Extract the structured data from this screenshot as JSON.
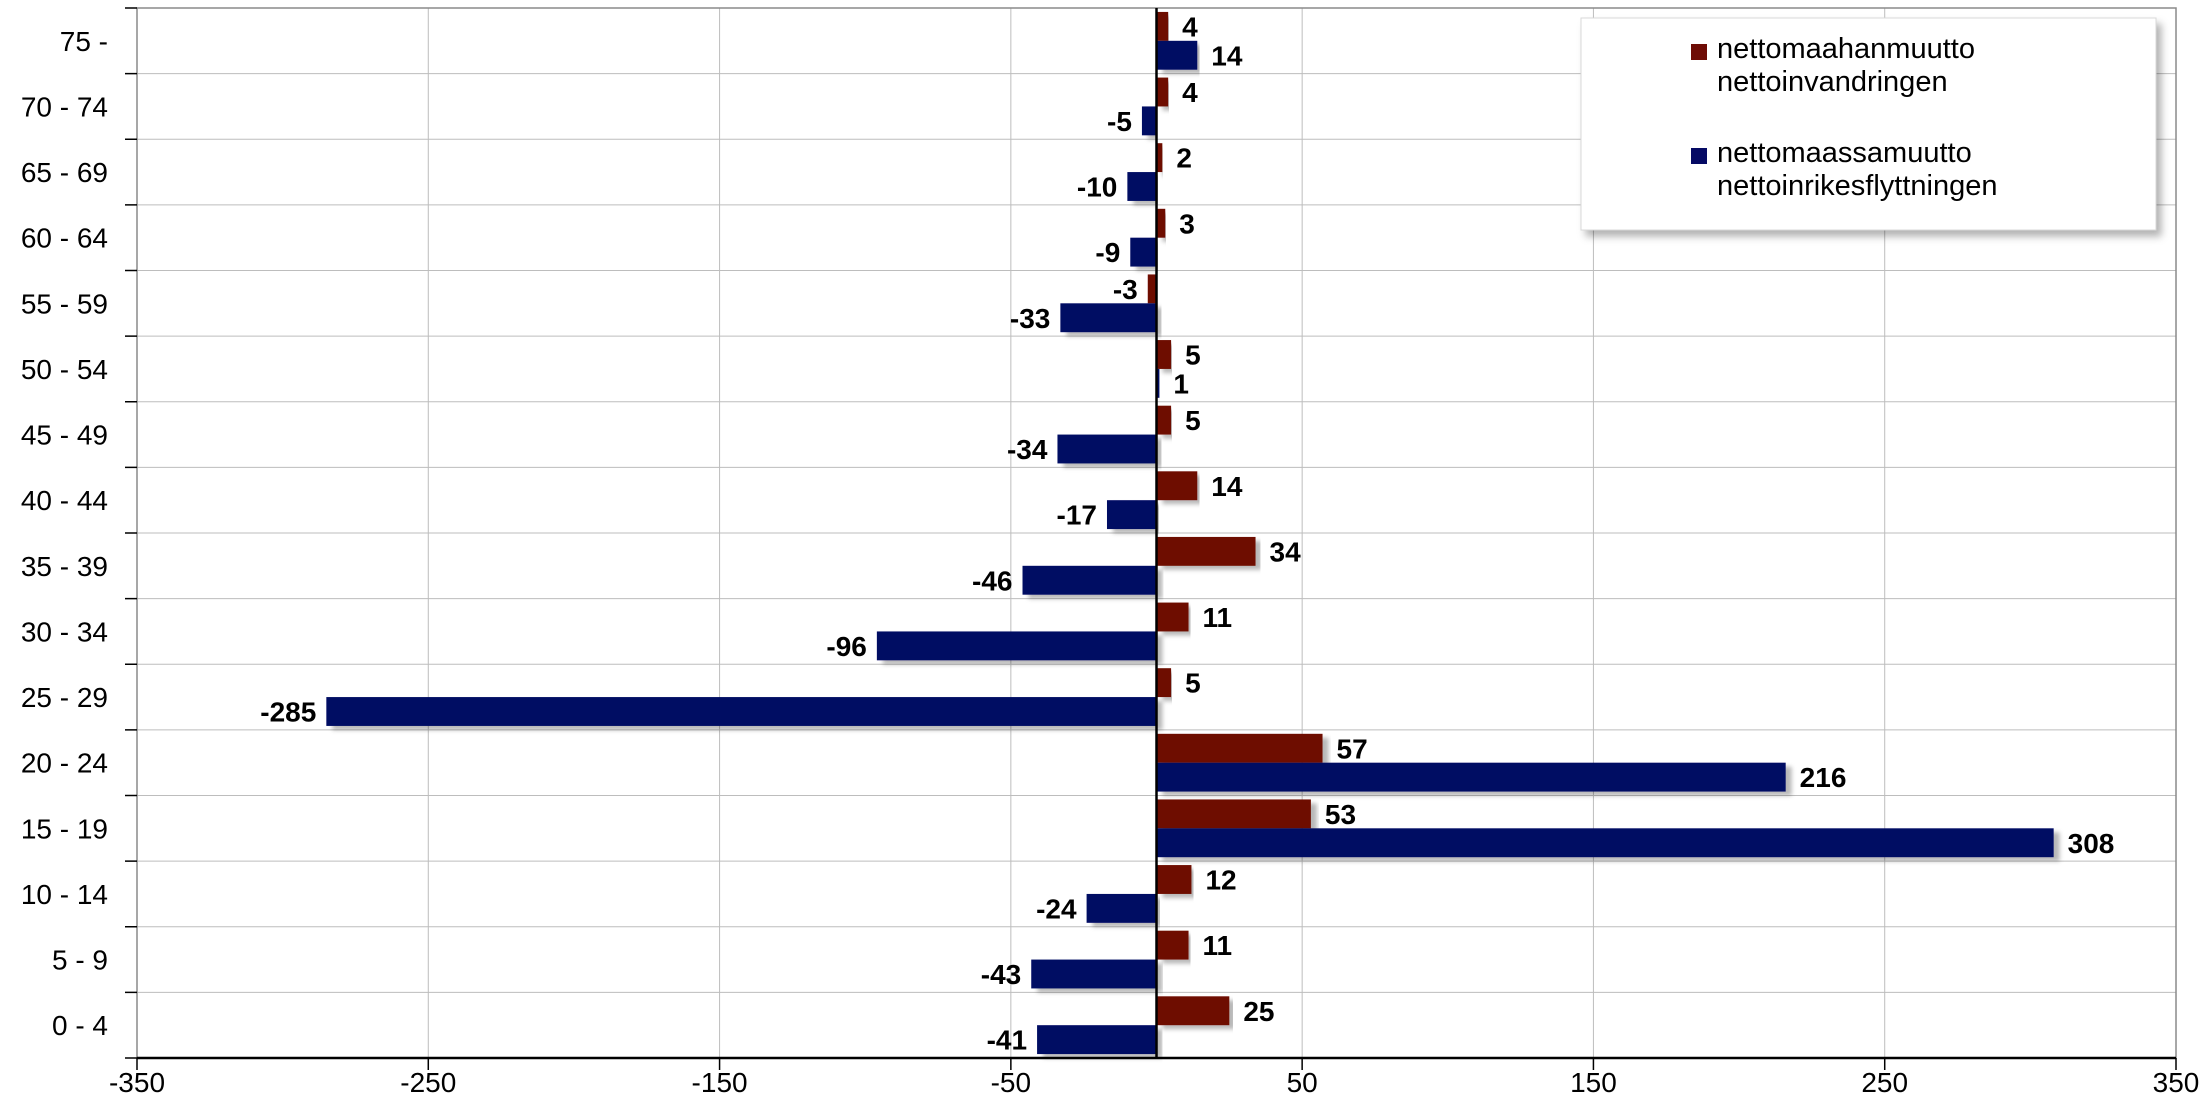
{
  "chart_data": {
    "type": "bar",
    "orientation": "horizontal",
    "title": "",
    "xlabel": "",
    "ylabel": "",
    "xlim": [
      -350,
      350
    ],
    "x_ticks": [
      -350,
      -250,
      -150,
      -50,
      50,
      150,
      250,
      350
    ],
    "grid": true,
    "legend_position": "top-right",
    "categories": [
      "0 - 4",
      "5 - 9",
      "10 - 14",
      "15 - 19",
      "20 - 24",
      "25 - 29",
      "30 - 34",
      "35 - 39",
      "40 - 44",
      "45 - 49",
      "50 - 54",
      "55 - 59",
      "60 - 64",
      "65 - 69",
      "70 - 74",
      "75 -"
    ],
    "series": [
      {
        "name": "nettomaahanmuutto",
        "name_line2": "nettoinvandringen",
        "color": "#6E0C05",
        "values": [
          25,
          11,
          12,
          53,
          57,
          5,
          11,
          34,
          14,
          5,
          5,
          -3,
          3,
          2,
          4,
          4
        ]
      },
      {
        "name": "nettomaassamuutto",
        "name_line2": "nettoinrikesflyttningen",
        "color": "#050A64",
        "values": [
          -41,
          -43,
          -24,
          308,
          216,
          -285,
          -96,
          -46,
          -17,
          -34,
          1,
          -33,
          -9,
          -10,
          -5,
          14
        ]
      }
    ]
  }
}
